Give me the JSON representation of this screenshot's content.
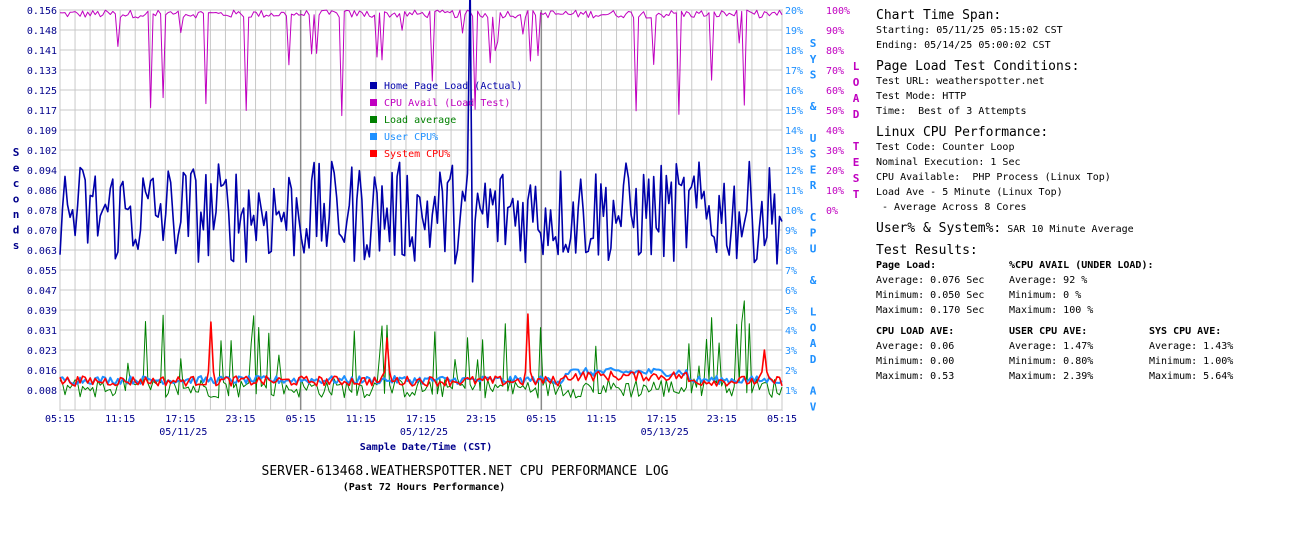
{
  "chart_data": {
    "type": "line",
    "title": "SERVER-613468.WEATHERSPOTTER.NET CPU PERFORMANCE LOG",
    "subtitle": "(Past 72 Hours Performance)",
    "xlabel": "Sample Date/Time (CST)",
    "ylabel_left": "Seconds",
    "ylabel_right_inner": "SYS & USER CPU & LOAD AV",
    "ylabel_right_outer": "LOAD TEST",
    "x_ticks": [
      "05:15",
      "11:15",
      "17:15",
      "23:15",
      "05:15",
      "11:15",
      "17:15",
      "23:15",
      "05:15",
      "11:15",
      "17:15",
      "23:15",
      "05:15"
    ],
    "x_dates": [
      {
        "after_tick": 2,
        "label": "05/11/25"
      },
      {
        "after_tick": 6,
        "label": "05/12/25"
      },
      {
        "after_tick": 10,
        "label": "05/13/25"
      }
    ],
    "y_left_ticks": [
      "0.156",
      "0.148",
      "0.141",
      "0.133",
      "0.125",
      "0.117",
      "0.109",
      "0.102",
      "0.094",
      "0.086",
      "0.078",
      "0.070",
      "0.063",
      "0.055",
      "0.047",
      "0.039",
      "0.031",
      "0.023",
      "0.016",
      "0.008"
    ],
    "y_left_range": [
      0,
      0.156
    ],
    "y_right_cpu_ticks": [
      "20%",
      "19%",
      "18%",
      "17%",
      "16%",
      "15%",
      "14%",
      "13%",
      "12%",
      "11%",
      "10%",
      "9%",
      "8%",
      "7%",
      "6%",
      "5%",
      "4%",
      "3%",
      "2%",
      "1%"
    ],
    "y_right_load_ticks": [
      "100%",
      "90%",
      "80%",
      "70%",
      "60%",
      "50%",
      "40%",
      "30%",
      "20%",
      "10%",
      "0%"
    ],
    "grid": true,
    "legend_position": "top-center",
    "series": [
      {
        "name": "Home Page Load (Actual)",
        "color": "#0000aa",
        "baseline": 0.076,
        "min": 0.05,
        "max": 0.17
      },
      {
        "name": "CPU Avail (Load Test)",
        "color": "#c000c0",
        "baseline": 92,
        "min": 0,
        "max": 100
      },
      {
        "name": "Load average",
        "color": "#008000",
        "baseline": 0.06,
        "min": 0.0,
        "max": 0.53
      },
      {
        "name": "User CPU%",
        "color": "#1e90ff",
        "baseline": 1.47,
        "min": 0.8,
        "max": 2.39
      },
      {
        "name": "System CPU%",
        "color": "#ff0000",
        "baseline": 1.43,
        "min": 1.0,
        "max": 5.64
      }
    ]
  },
  "panel": {
    "span_title": "Chart Time Span:",
    "span_start": "Starting: 05/11/25 05:15:02 CST",
    "span_end": "Ending: 05/14/25 05:00:02 CST",
    "cond_title": "Page Load Test Conditions:",
    "cond_url": "Test URL: weatherspotter.net",
    "cond_mode": "Test Mode: HTTP",
    "cond_time": "Time:  Best of 3 Attempts",
    "linux_title": "Linux CPU Performance:",
    "linux_code": "Test Code: Counter Loop",
    "linux_exec": "Nominal Execution: 1 Sec",
    "linux_avail": "CPU Available:  PHP Process (Linux Top)",
    "linux_load": "Load Ave - 5 Minute (Linux Top)",
    "linux_cores": " - Average Across 8 Cores",
    "usersys_title": "User% & System%:",
    "usersys_desc": "SAR 10 Minute Average",
    "results_title": "Test Results:",
    "page_load": {
      "head": "Page Load:",
      "avg": "Average: 0.076 Sec",
      "min": "Minimum: 0.050 Sec",
      "max": "Maximum: 0.170 Sec"
    },
    "cpu_avail": {
      "head": "%CPU AVAIL (UNDER LOAD):",
      "avg": "Average: 92 %",
      "min": "Minimum: 0 %",
      "max": "Maximum: 100 %"
    },
    "cpu_load": {
      "head": "CPU LOAD AVE:",
      "avg": "Average: 0.06",
      "min": "Minimum: 0.00",
      "max": "Maximum: 0.53"
    },
    "user_cpu": {
      "head": "USER CPU AVE:",
      "avg": "Average: 1.47%",
      "min": "Minimum: 0.80%",
      "max": "Maximum: 2.39%"
    },
    "sys_cpu": {
      "head": "SYS CPU AVE:",
      "avg": "Average: 1.43%",
      "min": "Minimum: 1.00%",
      "max": "Maximum: 5.64%"
    }
  }
}
